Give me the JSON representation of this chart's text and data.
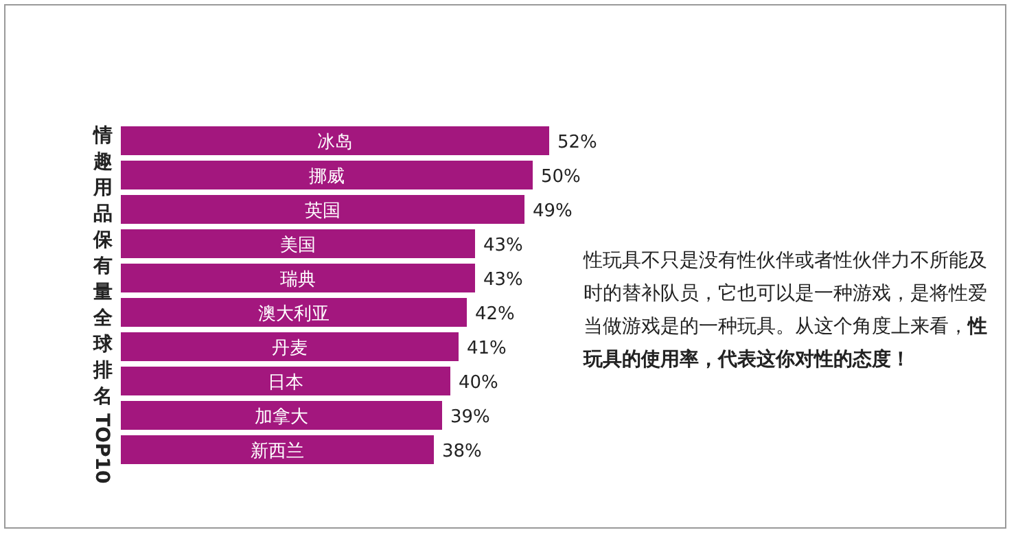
{
  "chart_data": {
    "type": "bar",
    "orientation": "horizontal",
    "ylabel": "情趣用品保有量全球排名TOP10",
    "categories": [
      "冰岛",
      "挪威",
      "英国",
      "美国",
      "瑞典",
      "澳大利亚",
      "丹麦",
      "日本",
      "加拿大",
      "新西兰"
    ],
    "values": [
      52,
      50,
      49,
      43,
      43,
      42,
      41,
      40,
      39,
      38
    ],
    "value_labels": [
      "52%",
      "50%",
      "49%",
      "43%",
      "43%",
      "42%",
      "41%",
      "40%",
      "39%",
      "38%"
    ],
    "color": "#a3177e",
    "annotations": [
      "性玩具不只是没有性伙伴或者性伙伴力不所能及时的替补队员，它也可以是一种游戏，是将性爱当做游戏是的一种玩具。从这个角度上来看，",
      "性玩具的使用率，代表这你对性的态度！"
    ]
  }
}
